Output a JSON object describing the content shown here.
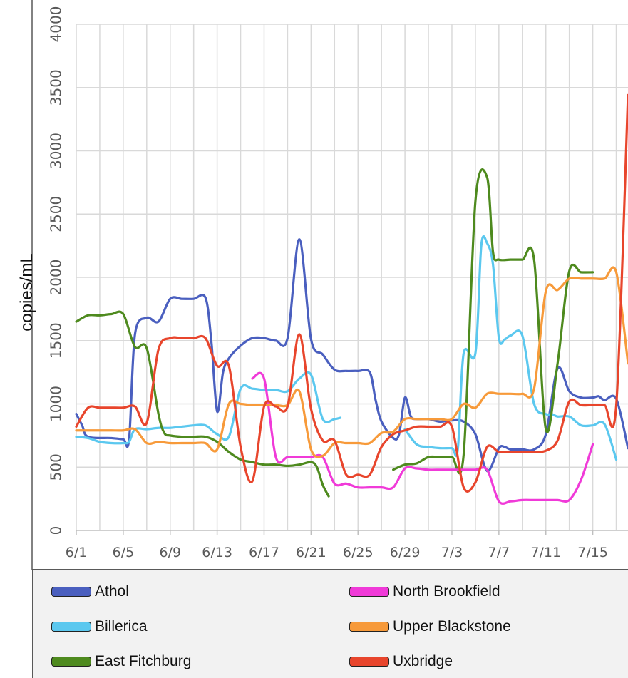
{
  "chart_data": {
    "type": "line",
    "title": "",
    "ylabel": "copies/mL",
    "xlabel": "",
    "ylim": [
      0,
      4000
    ],
    "y_ticks": [
      0,
      500,
      1000,
      1500,
      2000,
      2500,
      3000,
      3500,
      4000
    ],
    "x_tick_labels": [
      "6/1",
      "6/5",
      "6/9",
      "6/13",
      "6/17",
      "6/21",
      "6/25",
      "6/29",
      "7/3",
      "7/7",
      "7/11",
      "7/15"
    ],
    "x_range_days": [
      0,
      47
    ],
    "grid": true,
    "legend_position": "bottom",
    "series": [
      {
        "name": "Athol",
        "color": "#4a5fbf",
        "x": [
          0,
          0.5,
          1,
          3,
          4,
          4.5,
          5,
          6,
          7,
          8,
          9,
          10,
          11,
          11.5,
          12,
          12.5,
          13,
          14,
          15,
          16,
          17,
          18,
          19,
          20,
          21,
          22,
          23,
          24,
          25,
          25.5,
          26,
          27,
          27.5,
          28,
          28.5,
          29,
          30,
          31,
          32,
          33,
          34,
          35,
          36,
          36.5,
          37,
          38,
          39,
          40,
          41,
          42,
          43,
          44,
          44.5,
          45,
          46,
          47
        ],
        "y": [
          920,
          830,
          740,
          730,
          720,
          720,
          1550,
          1680,
          1650,
          1830,
          1830,
          1830,
          1840,
          1500,
          940,
          1250,
          1360,
          1460,
          1520,
          1520,
          1500,
          1520,
          2300,
          1510,
          1390,
          1270,
          1260,
          1260,
          1250,
          1030,
          860,
          730,
          760,
          1050,
          900,
          880,
          880,
          860,
          870,
          860,
          760,
          470,
          650,
          660,
          640,
          640,
          640,
          760,
          1280,
          1100,
          1050,
          1050,
          1060,
          1030,
          1040,
          650
        ]
      },
      {
        "name": "Billerica",
        "color": "#5bc8ef",
        "x": [
          0,
          1,
          2,
          3,
          4,
          4.5,
          5,
          6,
          7,
          8,
          9,
          10,
          11,
          12,
          13,
          14,
          15,
          16,
          17,
          18,
          19,
          20,
          21,
          22,
          22.5,
          23,
          24,
          25,
          26,
          27,
          28,
          29,
          30,
          31,
          32,
          32.5,
          33,
          34,
          34.5,
          35,
          35.5,
          36,
          36.5,
          37,
          38,
          39,
          40,
          40.5,
          41,
          42,
          43,
          44,
          45,
          46,
          46.5,
          47
        ],
        "y": [
          740,
          730,
          700,
          690,
          690,
          700,
          800,
          800,
          810,
          810,
          820,
          830,
          830,
          760,
          740,
          1120,
          1120,
          1110,
          1110,
          1100,
          1200,
          1230,
          880,
          880,
          890,
          null,
          null,
          null,
          null,
          null,
          800,
          680,
          660,
          650,
          650,
          640,
          1400,
          1400,
          2250,
          2270,
          2100,
          1520,
          1510,
          1540,
          1540,
          1000,
          920,
          920,
          900,
          900,
          830,
          830,
          840,
          560,
          null,
          null
        ]
      },
      {
        "name": "East Fitchburg",
        "color": "#4e8a1e",
        "x": [
          0,
          1,
          2,
          3,
          4,
          5,
          6,
          7,
          7.5,
          8,
          9,
          10,
          11,
          12,
          13,
          14,
          15,
          16,
          17,
          18,
          19,
          20,
          20.5,
          21,
          21.5,
          22,
          27,
          28,
          29,
          30,
          31,
          32,
          33,
          34,
          35,
          35.5,
          36,
          37,
          38,
          39,
          40,
          41,
          42,
          43,
          44,
          45
        ],
        "y": [
          1650,
          1700,
          1700,
          1710,
          1710,
          1450,
          1440,
          920,
          770,
          750,
          740,
          740,
          740,
          700,
          620,
          560,
          540,
          520,
          520,
          510,
          520,
          540,
          500,
          360,
          270,
          null,
          480,
          520,
          530,
          580,
          580,
          580,
          600,
          2600,
          2790,
          2200,
          2140,
          2140,
          2140,
          2140,
          800,
          1320,
          2050,
          2040,
          2040,
          null
        ]
      },
      {
        "name": "North Brookfield",
        "color": "#f03ad8",
        "x": [
          15,
          16,
          17,
          18,
          19,
          20,
          21,
          22,
          23,
          24,
          25,
          26,
          27,
          28,
          29,
          30,
          31,
          32,
          33,
          34,
          35,
          36,
          37,
          38,
          39,
          40,
          41,
          42,
          43,
          44
        ],
        "y": [
          1200,
          1200,
          580,
          580,
          580,
          580,
          580,
          370,
          370,
          340,
          340,
          340,
          340,
          490,
          490,
          480,
          480,
          480,
          480,
          480,
          480,
          230,
          230,
          240,
          240,
          240,
          240,
          240,
          400,
          680
        ]
      },
      {
        "name": "Upper Blackstone",
        "color": "#f79a3a",
        "x": [
          0,
          1,
          2,
          3,
          4,
          5,
          6,
          7,
          8,
          9,
          10,
          11,
          12,
          13,
          14,
          15,
          16,
          17,
          18,
          19,
          20,
          21,
          22,
          23,
          24,
          25,
          26,
          27,
          28,
          29,
          30,
          31,
          32,
          33,
          34,
          35,
          36,
          37,
          38,
          39,
          40,
          41,
          42,
          43,
          44,
          45,
          46,
          47
        ],
        "y": [
          790,
          790,
          790,
          790,
          790,
          800,
          690,
          700,
          690,
          690,
          690,
          690,
          640,
          1000,
          1000,
          990,
          990,
          990,
          990,
          1100,
          640,
          590,
          690,
          690,
          690,
          690,
          770,
          780,
          880,
          880,
          880,
          880,
          880,
          1000,
          970,
          1080,
          1080,
          1080,
          1080,
          1120,
          1890,
          1900,
          1990,
          1990,
          1990,
          1990,
          2040,
          1320
        ]
      },
      {
        "name": "Uxbridge",
        "color": "#e8452c",
        "x": [
          0,
          1,
          2,
          3,
          4,
          5,
          6,
          7,
          8,
          9,
          10,
          11,
          12,
          13,
          14,
          15,
          16,
          17,
          18,
          19,
          20,
          21,
          22,
          23,
          24,
          25,
          26,
          27,
          28,
          29,
          30,
          31,
          32,
          33,
          34,
          35,
          36,
          37,
          38,
          39,
          40,
          41,
          42,
          43,
          44,
          45,
          46,
          47
        ],
        "y": [
          820,
          970,
          970,
          970,
          970,
          980,
          850,
          1430,
          1520,
          1520,
          1520,
          1520,
          1300,
          1300,
          660,
          390,
          980,
          980,
          980,
          1550,
          960,
          710,
          710,
          440,
          440,
          440,
          660,
          760,
          790,
          820,
          820,
          820,
          820,
          340,
          380,
          660,
          620,
          620,
          620,
          620,
          630,
          710,
          1020,
          990,
          990,
          990,
          990,
          3440
        ]
      }
    ]
  }
}
